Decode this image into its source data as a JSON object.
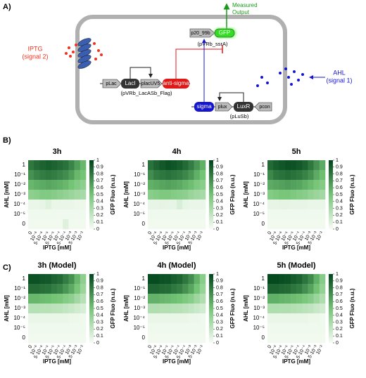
{
  "diagram": {
    "panel_a": "A)",
    "output_1": "Measured",
    "output_2": "Output",
    "iptg": "IPTG",
    "iptg_sub": "(signal 2)",
    "ahl": "AHL",
    "ahl_sub": "(signal 1)",
    "plac": "pLac",
    "laci": "LacI",
    "placuv5": "placUV5",
    "antisigma": "anti-sigma",
    "plasmid_1": "(pVRb_LacASb_Flag)",
    "p20": "p20_99b",
    "gfp": "GFP",
    "plasmid_2": "(pVRb_ssrA)",
    "sigma": "sigma",
    "plux": "plux",
    "luxr": "LuxR",
    "pcon": "pcon",
    "plasmid_3": "(pLuSb)"
  },
  "panels": {
    "b": "B)",
    "c": "C)"
  },
  "chart_data": [
    {
      "type": "heatmap",
      "title": "3h",
      "xlabel": "IPTG [mM]",
      "ylabel": "AHL [mM]",
      "colorbar_label": "GFP Fluo (n.u.)",
      "colormap": [
        "#f7fcf5",
        "#74c476",
        "#00441b"
      ],
      "zlim": [
        0,
        1
      ],
      "zticks": [
        0,
        0.1,
        0.2,
        0.3,
        0.4,
        0.5,
        0.6,
        0.7,
        0.8,
        0.9,
        1
      ],
      "x": [
        "0",
        "10⁻⁶",
        "5·10⁻⁶",
        "10⁻⁵",
        "5·10⁻⁵",
        "10⁻⁴",
        "5·10⁻⁴",
        "10⁻³",
        "5·10⁻³",
        "10⁻²"
      ],
      "y": [
        "1",
        "10⁻¹",
        "10⁻²",
        "10⁻³",
        "10⁻⁴",
        "10⁻⁵",
        "0"
      ],
      "values": [
        [
          0.8,
          0.85,
          0.88,
          0.9,
          0.88,
          0.85,
          0.82,
          0.75,
          0.65,
          0.55
        ],
        [
          0.7,
          0.75,
          0.78,
          0.8,
          0.78,
          0.75,
          0.72,
          0.65,
          0.55,
          0.5
        ],
        [
          0.55,
          0.58,
          0.6,
          0.62,
          0.6,
          0.58,
          0.55,
          0.5,
          0.45,
          0.4
        ],
        [
          0.4,
          0.42,
          0.45,
          0.45,
          0.43,
          0.4,
          0.38,
          0.35,
          0.32,
          0.3
        ],
        [
          0.05,
          0.05,
          0.06,
          0.1,
          0.05,
          0.05,
          0.05,
          0.05,
          0.04,
          0.04
        ],
        [
          0.03,
          0.03,
          0.03,
          0.03,
          0.03,
          0.03,
          0.03,
          0.03,
          0.03,
          0.03
        ],
        [
          0.02,
          0.02,
          0.02,
          0.02,
          0.02,
          0.02,
          0.1,
          0.02,
          0.02,
          0.02
        ]
      ]
    },
    {
      "type": "heatmap",
      "title": "4h",
      "xlabel": "IPTG [mM]",
      "ylabel": "AHL [mM]",
      "colorbar_label": "GFP Fluo (n.u.)",
      "colormap": [
        "#f7fcf5",
        "#74c476",
        "#00441b"
      ],
      "zlim": [
        0,
        1
      ],
      "zticks": [
        0,
        0.1,
        0.2,
        0.3,
        0.4,
        0.5,
        0.6,
        0.7,
        0.8,
        0.9,
        1
      ],
      "x": [
        "0",
        "10⁻⁶",
        "5·10⁻⁶",
        "10⁻⁵",
        "5·10⁻⁵",
        "10⁻⁴",
        "5·10⁻⁴",
        "10⁻³",
        "5·10⁻³",
        "10⁻²"
      ],
      "y": [
        "1",
        "10⁻¹",
        "10⁻²",
        "10⁻³",
        "10⁻⁴",
        "10⁻⁵",
        "0"
      ],
      "values": [
        [
          0.82,
          0.88,
          0.92,
          0.95,
          0.93,
          0.9,
          0.85,
          0.78,
          0.68,
          0.58
        ],
        [
          0.72,
          0.78,
          0.8,
          0.82,
          0.8,
          0.78,
          0.74,
          0.68,
          0.58,
          0.5
        ],
        [
          0.58,
          0.6,
          0.62,
          0.64,
          0.62,
          0.6,
          0.56,
          0.52,
          0.46,
          0.42
        ],
        [
          0.42,
          0.44,
          0.46,
          0.46,
          0.44,
          0.42,
          0.4,
          0.36,
          0.33,
          0.3
        ],
        [
          0.06,
          0.06,
          0.07,
          0.06,
          0.06,
          0.12,
          0.06,
          0.05,
          0.05,
          0.05
        ],
        [
          0.03,
          0.03,
          0.03,
          0.03,
          0.03,
          0.03,
          0.03,
          0.03,
          0.03,
          0.03
        ],
        [
          0.02,
          0.02,
          0.02,
          0.02,
          0.02,
          0.02,
          0.02,
          0.02,
          0.02,
          0.02
        ]
      ]
    },
    {
      "type": "heatmap",
      "title": "5h",
      "xlabel": "IPTG [mM]",
      "ylabel": "AHL [mM]",
      "colorbar_label": "GFP Fluo (n.u.)",
      "colormap": [
        "#f7fcf5",
        "#74c476",
        "#00441b"
      ],
      "zlim": [
        0,
        1
      ],
      "zticks": [
        0,
        0.1,
        0.2,
        0.3,
        0.4,
        0.5,
        0.6,
        0.7,
        0.8,
        0.9,
        1
      ],
      "x": [
        "0",
        "10⁻⁶",
        "5·10⁻⁶",
        "10⁻⁵",
        "5·10⁻⁵",
        "10⁻⁴",
        "5·10⁻⁴",
        "10⁻³",
        "5·10⁻³",
        "10⁻²"
      ],
      "y": [
        "1",
        "10⁻¹",
        "10⁻²",
        "10⁻³",
        "10⁻⁴",
        "10⁻⁵",
        "0"
      ],
      "values": [
        [
          0.85,
          0.9,
          0.93,
          0.95,
          0.94,
          0.92,
          0.88,
          0.8,
          0.7,
          0.6
        ],
        [
          0.74,
          0.8,
          0.82,
          0.84,
          0.82,
          0.8,
          0.76,
          0.7,
          0.6,
          0.52
        ],
        [
          0.6,
          0.62,
          0.64,
          0.66,
          0.64,
          0.62,
          0.58,
          0.54,
          0.48,
          0.44
        ],
        [
          0.44,
          0.46,
          0.48,
          0.48,
          0.46,
          0.44,
          0.42,
          0.38,
          0.35,
          0.32
        ],
        [
          0.06,
          0.06,
          0.07,
          0.07,
          0.06,
          0.06,
          0.06,
          0.05,
          0.05,
          0.05
        ],
        [
          0.03,
          0.03,
          0.03,
          0.03,
          0.03,
          0.03,
          0.03,
          0.03,
          0.03,
          0.03
        ],
        [
          0.02,
          0.02,
          0.02,
          0.02,
          0.02,
          0.02,
          0.02,
          0.02,
          0.02,
          0.02
        ]
      ]
    },
    {
      "type": "heatmap",
      "title": "3h (Model)",
      "xlabel": "IPTG [mM]",
      "ylabel": "AHL [mM]",
      "colorbar_label": "GFP Fluo (n.u.)",
      "colormap": [
        "#f7fcf5",
        "#74c476",
        "#00441b"
      ],
      "zlim": [
        0,
        1
      ],
      "zticks": [
        0,
        0.1,
        0.2,
        0.3,
        0.4,
        0.5,
        0.6,
        0.7,
        0.8,
        0.9,
        1
      ],
      "x": [
        "0",
        "10⁻⁶",
        "5·10⁻⁶",
        "10⁻⁵",
        "5·10⁻⁵",
        "10⁻⁴",
        "5·10⁻⁴",
        "10⁻³",
        "5·10⁻³",
        "10⁻²"
      ],
      "y": [
        "1",
        "10⁻¹",
        "10⁻²",
        "10⁻³",
        "10⁻⁴",
        "10⁻⁵",
        "0"
      ],
      "values": [
        [
          0.95,
          0.95,
          0.93,
          0.92,
          0.88,
          0.85,
          0.78,
          0.7,
          0.55,
          0.4
        ],
        [
          0.85,
          0.85,
          0.83,
          0.82,
          0.78,
          0.75,
          0.68,
          0.6,
          0.48,
          0.35
        ],
        [
          0.55,
          0.55,
          0.53,
          0.52,
          0.5,
          0.48,
          0.44,
          0.4,
          0.32,
          0.25
        ],
        [
          0.25,
          0.25,
          0.24,
          0.24,
          0.23,
          0.22,
          0.2,
          0.18,
          0.15,
          0.12
        ],
        [
          0.05,
          0.05,
          0.05,
          0.05,
          0.05,
          0.05,
          0.05,
          0.04,
          0.04,
          0.03
        ],
        [
          0.03,
          0.03,
          0.03,
          0.03,
          0.03,
          0.03,
          0.03,
          0.03,
          0.03,
          0.03
        ],
        [
          0.02,
          0.02,
          0.02,
          0.02,
          0.02,
          0.02,
          0.02,
          0.02,
          0.02,
          0.02
        ]
      ]
    },
    {
      "type": "heatmap",
      "title": "4h (Model)",
      "xlabel": "IPTG [mM]",
      "ylabel": "AHL [mM]",
      "colorbar_label": "GFP Fluo (n.u.)",
      "colormap": [
        "#f7fcf5",
        "#74c476",
        "#00441b"
      ],
      "zlim": [
        0,
        1
      ],
      "zticks": [
        0,
        0.1,
        0.2,
        0.3,
        0.4,
        0.5,
        0.6,
        0.7,
        0.8,
        0.9,
        1
      ],
      "x": [
        "0",
        "10⁻⁶",
        "5·10⁻⁶",
        "10⁻⁵",
        "5·10⁻⁵",
        "10⁻⁴",
        "5·10⁻⁴",
        "10⁻³",
        "5·10⁻³",
        "10⁻²"
      ],
      "y": [
        "1",
        "10⁻¹",
        "10⁻²",
        "10⁻³",
        "10⁻⁴",
        "10⁻⁵",
        "0"
      ],
      "values": [
        [
          0.97,
          0.97,
          0.95,
          0.94,
          0.9,
          0.87,
          0.8,
          0.72,
          0.57,
          0.42
        ],
        [
          0.87,
          0.87,
          0.85,
          0.84,
          0.8,
          0.77,
          0.7,
          0.62,
          0.5,
          0.37
        ],
        [
          0.57,
          0.57,
          0.55,
          0.54,
          0.52,
          0.5,
          0.46,
          0.42,
          0.34,
          0.27
        ],
        [
          0.27,
          0.27,
          0.26,
          0.26,
          0.25,
          0.24,
          0.22,
          0.2,
          0.17,
          0.14
        ],
        [
          0.05,
          0.05,
          0.05,
          0.05,
          0.05,
          0.05,
          0.05,
          0.04,
          0.04,
          0.03
        ],
        [
          0.03,
          0.03,
          0.03,
          0.03,
          0.03,
          0.03,
          0.03,
          0.03,
          0.03,
          0.03
        ],
        [
          0.02,
          0.02,
          0.02,
          0.02,
          0.02,
          0.02,
          0.02,
          0.02,
          0.02,
          0.02
        ]
      ]
    },
    {
      "type": "heatmap",
      "title": "5h (Model)",
      "xlabel": "IPTG [mM]",
      "ylabel": "AHL [mM]",
      "colorbar_label": "GFP Fluo (n.u.)",
      "colormap": [
        "#f7fcf5",
        "#74c476",
        "#00441b"
      ],
      "zlim": [
        0,
        1
      ],
      "zticks": [
        0,
        0.1,
        0.2,
        0.3,
        0.4,
        0.5,
        0.6,
        0.7,
        0.8,
        0.9,
        1
      ],
      "x": [
        "0",
        "10⁻⁶",
        "5·10⁻⁶",
        "10⁻⁵",
        "5·10⁻⁵",
        "10⁻⁴",
        "5·10⁻⁴",
        "10⁻³",
        "5·10⁻³",
        "10⁻²"
      ],
      "y": [
        "1",
        "10⁻¹",
        "10⁻²",
        "10⁻³",
        "10⁻⁴",
        "10⁻⁵",
        "0"
      ],
      "values": [
        [
          0.98,
          0.98,
          0.96,
          0.95,
          0.91,
          0.88,
          0.81,
          0.73,
          0.58,
          0.43
        ],
        [
          0.88,
          0.88,
          0.86,
          0.85,
          0.81,
          0.78,
          0.71,
          0.63,
          0.51,
          0.38
        ],
        [
          0.58,
          0.58,
          0.56,
          0.55,
          0.53,
          0.51,
          0.47,
          0.43,
          0.35,
          0.28
        ],
        [
          0.28,
          0.28,
          0.27,
          0.27,
          0.26,
          0.25,
          0.23,
          0.21,
          0.18,
          0.15
        ],
        [
          0.05,
          0.05,
          0.05,
          0.05,
          0.05,
          0.05,
          0.05,
          0.04,
          0.04,
          0.03
        ],
        [
          0.03,
          0.03,
          0.03,
          0.03,
          0.03,
          0.03,
          0.03,
          0.03,
          0.03,
          0.03
        ],
        [
          0.02,
          0.02,
          0.02,
          0.02,
          0.02,
          0.02,
          0.02,
          0.02,
          0.02,
          0.02
        ]
      ]
    }
  ]
}
